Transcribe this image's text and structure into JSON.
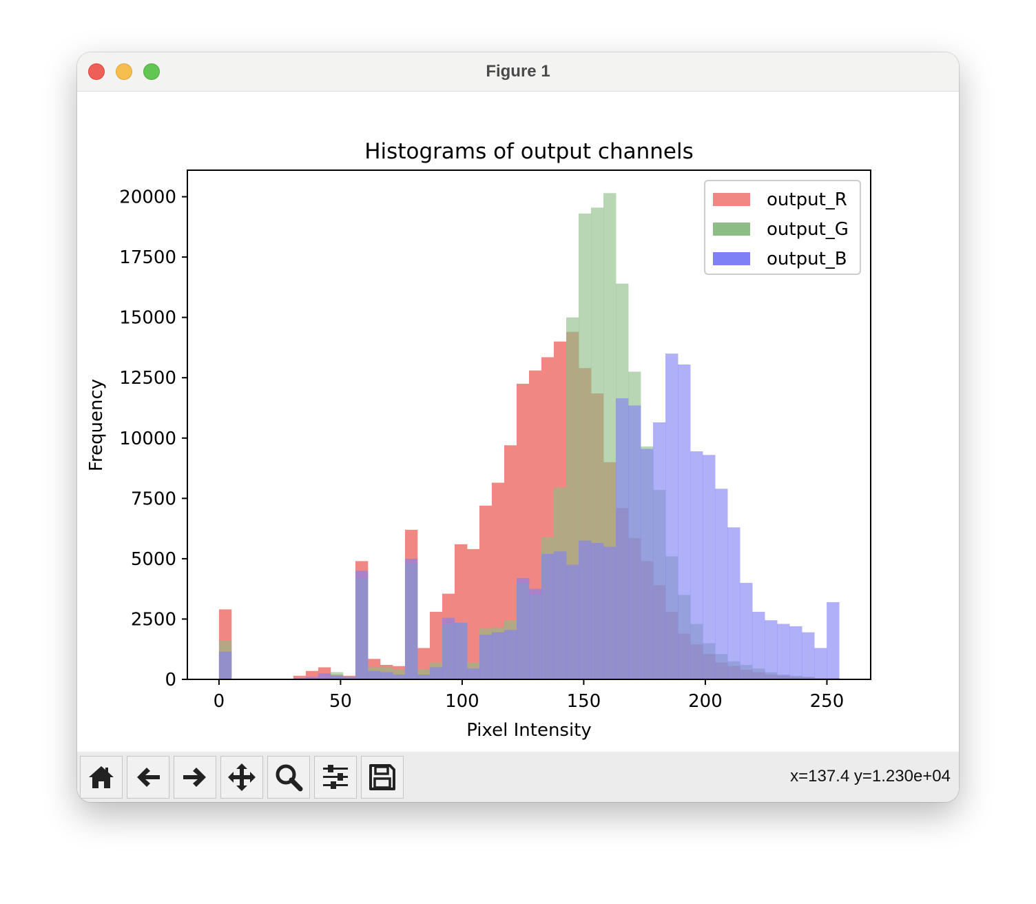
{
  "window": {
    "title": "Figure 1"
  },
  "toolbar": {
    "buttons": [
      {
        "icon": "home-icon"
      },
      {
        "icon": "back-arrow-icon"
      },
      {
        "icon": "forward-arrow-icon"
      },
      {
        "icon": "pan-move-icon"
      },
      {
        "icon": "zoom-magnifier-icon"
      },
      {
        "icon": "configure-subplots-icon"
      },
      {
        "icon": "save-floppy-icon"
      }
    ],
    "coords": "x=137.4 y=1.230e+04"
  },
  "chart_data": {
    "type": "bar",
    "title": "Histograms of output channels",
    "xlabel": "Pixel Intensity",
    "ylabel": "Frequency",
    "xlim": [
      -13,
      268
    ],
    "ylim": [
      0,
      21100
    ],
    "x_ticks": [
      0,
      50,
      100,
      150,
      200,
      250
    ],
    "y_ticks": [
      0,
      2500,
      5000,
      7500,
      10000,
      12500,
      15000,
      17500,
      20000
    ],
    "bin_edges": [
      0,
      5.1,
      10.2,
      15.3,
      20.4,
      25.5,
      30.6,
      35.7,
      40.8,
      45.9,
      51,
      56.1,
      61.2,
      66.3,
      71.4,
      76.5,
      81.6,
      86.7,
      91.8,
      96.9,
      102,
      107.1,
      112.2,
      117.3,
      122.4,
      127.5,
      132.6,
      137.7,
      142.8,
      147.9,
      153,
      158.1,
      163.2,
      168.3,
      173.4,
      178.5,
      183.6,
      188.7,
      193.8,
      198.9,
      204,
      209.1,
      214.2,
      219.3,
      224.4,
      229.5,
      234.6,
      239.7,
      244.8,
      249.9,
      255
    ],
    "legend": {
      "position": "upper right"
    },
    "grid": false,
    "series": [
      {
        "name": "output_R",
        "color": "#f08782",
        "values": [
          2900,
          0,
          0,
          0,
          0,
          0,
          150,
          350,
          500,
          200,
          150,
          4900,
          850,
          600,
          550,
          6200,
          1300,
          2800,
          3550,
          5600,
          5400,
          7200,
          8150,
          9700,
          12250,
          12800,
          13350,
          14000,
          14400,
          12900,
          11850,
          9000,
          7100,
          5850,
          4900,
          3900,
          2800,
          1900,
          1450,
          1050,
          700,
          550,
          400,
          300,
          200,
          150,
          100,
          100,
          50,
          50
        ]
      },
      {
        "name": "output_G",
        "color": "#8cbd84",
        "values": [
          1600,
          0,
          0,
          0,
          0,
          0,
          0,
          0,
          0,
          300,
          100,
          4200,
          500,
          500,
          400,
          4800,
          400,
          700,
          2300,
          2350,
          700,
          2100,
          2150,
          2450,
          4000,
          3500,
          5900,
          7950,
          15000,
          19300,
          19550,
          20150,
          16400,
          12750,
          9650,
          7850,
          5100,
          3500,
          2300,
          1500,
          1050,
          750,
          600,
          450,
          300,
          200,
          150,
          100,
          50,
          50
        ]
      },
      {
        "name": "output_B",
        "color": "#8080f5",
        "values": [
          1150,
          0,
          0,
          0,
          0,
          0,
          50,
          100,
          250,
          150,
          100,
          4500,
          350,
          300,
          200,
          5000,
          200,
          500,
          2550,
          2350,
          450,
          1850,
          1950,
          2050,
          4200,
          3750,
          5200,
          5300,
          4750,
          5750,
          5650,
          5500,
          11650,
          11350,
          9550,
          10650,
          13500,
          13050,
          9450,
          9300,
          7900,
          6300,
          4000,
          2800,
          2450,
          2300,
          2200,
          1950,
          1300,
          3200
        ]
      }
    ]
  }
}
